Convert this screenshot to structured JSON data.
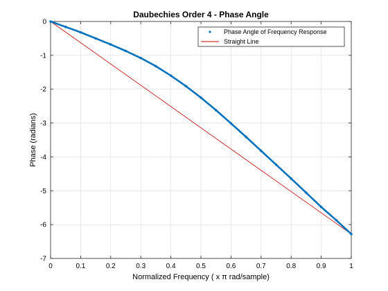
{
  "chart_data": {
    "type": "line",
    "title": "Daubechies Order 4 - Phase Angle",
    "xlabel": "Normalized Frequency ( x π rad/sample)",
    "ylabel": "Phase (radians)",
    "xlim": [
      0,
      1
    ],
    "ylim": [
      -7,
      0
    ],
    "xticks": [
      0,
      0.1,
      0.2,
      0.3,
      0.4,
      0.5,
      0.6,
      0.7,
      0.8,
      0.9,
      1
    ],
    "xtick_labels": [
      "0",
      "0.1",
      "0.2",
      "0.3",
      "0.4",
      "0.5",
      "0.6",
      "0.7",
      "0.8",
      "0.9",
      "1"
    ],
    "yticks": [
      0,
      -1,
      -2,
      -3,
      -4,
      -5,
      -6,
      -7
    ],
    "ytick_labels": [
      "0",
      "-1",
      "-2",
      "-3",
      "-4",
      "-5",
      "-6",
      "-7"
    ],
    "grid": true,
    "legend_position": "top-right",
    "series": [
      {
        "name": "Phase Angle of Frequency Response",
        "style": "dots",
        "color": "#0072BD",
        "x": [
          0,
          0.05,
          0.1,
          0.15,
          0.2,
          0.25,
          0.3,
          0.35,
          0.4,
          0.45,
          0.5,
          0.55,
          0.6,
          0.65,
          0.7,
          0.75,
          0.8,
          0.85,
          0.9,
          0.95,
          1
        ],
        "y": [
          0,
          -0.16,
          -0.32,
          -0.5,
          -0.68,
          -0.87,
          -1.08,
          -1.32,
          -1.6,
          -1.91,
          -2.25,
          -2.62,
          -3.01,
          -3.41,
          -3.82,
          -4.23,
          -4.64,
          -5.06,
          -5.48,
          -5.87,
          -6.28
        ]
      },
      {
        "name": "Straight Line",
        "style": "line",
        "color": "#c00000",
        "x": [
          0,
          1
        ],
        "y": [
          0,
          -6.28
        ]
      }
    ]
  }
}
